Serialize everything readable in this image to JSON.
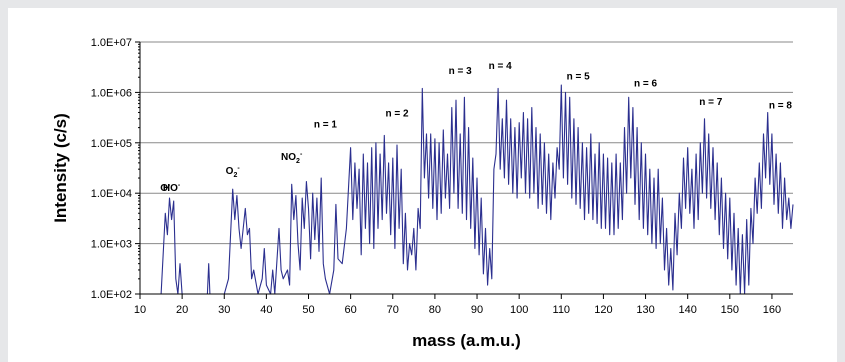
{
  "chart_data": {
    "type": "line",
    "xlabel": "mass (a.m.u.)",
    "ylabel": "Intensity (c/s)",
    "xlim": [
      10,
      165
    ],
    "ylim": [
      100,
      10000000
    ],
    "yscale": "log",
    "x_ticks": [
      "10",
      "20",
      "30",
      "40",
      "50",
      "60",
      "70",
      "80",
      "90",
      "100",
      "110",
      "120",
      "130",
      "140",
      "150",
      "160"
    ],
    "y_ticks": [
      "1.0E+02",
      "1.0E+03",
      "1.0E+04",
      "1.0E+05",
      "1.0E+06",
      "1.0E+07"
    ],
    "grid": "horizontal",
    "line_color": "#2b2f8f",
    "annotations": [
      {
        "base": "O",
        "sup": "-",
        "sub": "",
        "sup2": "",
        "x": 16,
        "y": 11000
      },
      {
        "base": "HO",
        "sup": "-",
        "sub": "",
        "sup2": "",
        "x": 17.5,
        "y": 11000
      },
      {
        "base": "O",
        "sup": "",
        "sub": "2",
        "sup2": "-",
        "x": 32,
        "y": 24000
      },
      {
        "base": "NO",
        "sup": "",
        "sub": "2",
        "sup2": "-",
        "x": 46,
        "y": 46000
      },
      {
        "base": "n = 1",
        "sup": "",
        "sub": "",
        "sup2": "",
        "x": 54,
        "y": 200000
      },
      {
        "base": "n = 2",
        "sup": "",
        "sub": "",
        "sup2": "",
        "x": 71,
        "y": 330000
      },
      {
        "base": "n = 3",
        "sup": "",
        "sub": "",
        "sup2": "",
        "x": 86,
        "y": 2300000
      },
      {
        "base": "n = 4",
        "sup": "",
        "sub": "",
        "sup2": "",
        "x": 95.5,
        "y": 2900000
      },
      {
        "base": "n = 5",
        "sup": "",
        "sub": "",
        "sup2": "",
        "x": 114,
        "y": 1800000
      },
      {
        "base": "n = 6",
        "sup": "",
        "sub": "",
        "sup2": "",
        "x": 130,
        "y": 1300000
      },
      {
        "base": "n = 7",
        "sup": "",
        "sub": "",
        "sup2": "",
        "x": 145.5,
        "y": 560000
      },
      {
        "base": "n = 8",
        "sup": "",
        "sub": "",
        "sup2": "",
        "x": 162,
        "y": 480000
      }
    ],
    "series": [
      {
        "values": [
          [
            14,
            100
          ],
          [
            15,
            100
          ],
          [
            16,
            4000
          ],
          [
            16.5,
            1500
          ],
          [
            17,
            8000
          ],
          [
            17.5,
            3000
          ],
          [
            18,
            7000
          ],
          [
            18.5,
            200
          ],
          [
            19,
            100
          ],
          [
            19.5,
            400
          ],
          [
            20,
            100
          ],
          [
            24,
            100
          ],
          [
            26,
            100
          ],
          [
            26.3,
            400
          ],
          [
            26.6,
            100
          ],
          [
            30,
            100
          ],
          [
            31,
            200
          ],
          [
            32,
            12000
          ],
          [
            32.5,
            3000
          ],
          [
            33,
            9000
          ],
          [
            33.5,
            2000
          ],
          [
            34,
            800
          ],
          [
            35,
            5000
          ],
          [
            35.5,
            1500
          ],
          [
            36,
            2000
          ],
          [
            36.5,
            200
          ],
          [
            37,
            300
          ],
          [
            38,
            100
          ],
          [
            39,
            200
          ],
          [
            39.5,
            800
          ],
          [
            40,
            150
          ],
          [
            41,
            100
          ],
          [
            41.5,
            300
          ],
          [
            42,
            100
          ],
          [
            43,
            2000
          ],
          [
            43.5,
            300
          ],
          [
            44,
            200
          ],
          [
            45,
            300
          ],
          [
            45.5,
            150
          ],
          [
            46,
            15000
          ],
          [
            46.5,
            3000
          ],
          [
            47,
            9000
          ],
          [
            47.5,
            1000
          ],
          [
            48,
            300
          ],
          [
            48.5,
            8000
          ],
          [
            49,
            2000
          ],
          [
            49.5,
            17000
          ],
          [
            50,
            5000
          ],
          [
            50.5,
            500
          ],
          [
            51,
            10000
          ],
          [
            51.5,
            1200
          ],
          [
            52,
            8000
          ],
          [
            52.5,
            700
          ],
          [
            53,
            20000
          ],
          [
            53.5,
            400
          ],
          [
            54,
            200
          ],
          [
            55,
            100
          ],
          [
            56,
            300
          ],
          [
            56.5,
            6000
          ],
          [
            57,
            500
          ],
          [
            58,
            400
          ],
          [
            59,
            2000
          ],
          [
            60,
            80000
          ],
          [
            60.5,
            3000
          ],
          [
            61,
            40000
          ],
          [
            61.5,
            5000
          ],
          [
            62,
            30000
          ],
          [
            62.5,
            600
          ],
          [
            63,
            60000
          ],
          [
            63.5,
            2000
          ],
          [
            64,
            40000
          ],
          [
            64.5,
            1000
          ],
          [
            65,
            80000
          ],
          [
            65.5,
            800
          ],
          [
            66,
            100000
          ],
          [
            66.5,
            2000
          ],
          [
            67,
            60000
          ],
          [
            67.5,
            3000
          ],
          [
            68,
            140000
          ],
          [
            68.5,
            4000
          ],
          [
            69,
            40000
          ],
          [
            69.5,
            1500
          ],
          [
            70,
            50000
          ],
          [
            70.5,
            800
          ],
          [
            71,
            90000
          ],
          [
            71.5,
            2000
          ],
          [
            72,
            30000
          ],
          [
            72.5,
            400
          ],
          [
            73,
            4000
          ],
          [
            73.5,
            300
          ],
          [
            74,
            1000
          ],
          [
            74.5,
            600
          ],
          [
            75,
            2000
          ],
          [
            75.5,
            300
          ],
          [
            76,
            5000
          ],
          [
            76.5,
            2000
          ],
          [
            77,
            1200000
          ],
          [
            77.5,
            20000
          ],
          [
            78,
            150000
          ],
          [
            78.5,
            8000
          ],
          [
            79,
            150000
          ],
          [
            79.5,
            5000
          ],
          [
            80,
            120000
          ],
          [
            80.5,
            3000
          ],
          [
            81,
            100000
          ],
          [
            81.5,
            4000
          ],
          [
            82,
            180000
          ],
          [
            82.5,
            8000
          ],
          [
            83,
            60000
          ],
          [
            83.5,
            5000
          ],
          [
            84,
            500000
          ],
          [
            84.5,
            10000
          ],
          [
            85,
            700000
          ],
          [
            85.5,
            5000
          ],
          [
            86,
            150000
          ],
          [
            86.5,
            4000
          ],
          [
            87,
            800000
          ],
          [
            87.5,
            3000
          ],
          [
            88,
            200000
          ],
          [
            88.5,
            2000
          ],
          [
            89,
            50000
          ],
          [
            89.5,
            800
          ],
          [
            90,
            20000
          ],
          [
            90.5,
            600
          ],
          [
            91,
            8000
          ],
          [
            91.5,
            250
          ],
          [
            92,
            2000
          ],
          [
            92.5,
            150
          ],
          [
            93,
            800
          ],
          [
            93.5,
            200
          ],
          [
            94,
            30000
          ],
          [
            94.5,
            60000
          ],
          [
            95,
            1200000
          ],
          [
            95.5,
            30000
          ],
          [
            96,
            300000
          ],
          [
            96.5,
            20000
          ],
          [
            97,
            700000
          ],
          [
            97.5,
            15000
          ],
          [
            98,
            300000
          ],
          [
            98.5,
            10000
          ],
          [
            99,
            200000
          ],
          [
            99.5,
            8000
          ],
          [
            100,
            250000
          ],
          [
            100.5,
            20000
          ],
          [
            101,
            400000
          ],
          [
            101.5,
            10000
          ],
          [
            102,
            300000
          ],
          [
            102.5,
            8000
          ],
          [
            103,
            500000
          ],
          [
            103.5,
            10000
          ],
          [
            104,
            200000
          ],
          [
            104.5,
            5000
          ],
          [
            105,
            150000
          ],
          [
            105.5,
            6000
          ],
          [
            106,
            100000
          ],
          [
            106.5,
            4000
          ],
          [
            107,
            60000
          ],
          [
            107.5,
            3000
          ],
          [
            108,
            40000
          ],
          [
            108.5,
            8000
          ],
          [
            109,
            80000
          ],
          [
            109.5,
            30000
          ],
          [
            110,
            1400000
          ],
          [
            110.5,
            20000
          ],
          [
            111,
            1000000
          ],
          [
            111.5,
            15000
          ],
          [
            112,
            800000
          ],
          [
            112.5,
            8000
          ],
          [
            113,
            300000
          ],
          [
            113.5,
            6000
          ],
          [
            114,
            200000
          ],
          [
            114.5,
            5000
          ],
          [
            115,
            100000
          ],
          [
            115.5,
            3000
          ],
          [
            116,
            80000
          ],
          [
            116.5,
            4000
          ],
          [
            117,
            150000
          ],
          [
            117.5,
            3000
          ],
          [
            118,
            60000
          ],
          [
            118.5,
            2500
          ],
          [
            119,
            100000
          ],
          [
            119.5,
            2000
          ],
          [
            120,
            60000
          ],
          [
            120.5,
            2000
          ],
          [
            121,
            50000
          ],
          [
            121.5,
            1500
          ],
          [
            122,
            40000
          ],
          [
            122.5,
            1500
          ],
          [
            123,
            60000
          ],
          [
            123.5,
            2000
          ],
          [
            124,
            40000
          ],
          [
            124.5,
            3000
          ],
          [
            125,
            200000
          ],
          [
            125.5,
            10000
          ],
          [
            126,
            800000
          ],
          [
            126.5,
            20000
          ],
          [
            127,
            500000
          ],
          [
            127.5,
            6000
          ],
          [
            128,
            200000
          ],
          [
            128.5,
            3000
          ],
          [
            129,
            100000
          ],
          [
            129.5,
            2000
          ],
          [
            130,
            60000
          ],
          [
            130.5,
            1500
          ],
          [
            131,
            30000
          ],
          [
            131.5,
            1000
          ],
          [
            132,
            20000
          ],
          [
            132.5,
            800
          ],
          [
            133,
            30000
          ],
          [
            133.5,
            1000
          ],
          [
            134,
            8000
          ],
          [
            134.5,
            300
          ],
          [
            135,
            2000
          ],
          [
            135.5,
            150
          ],
          [
            136,
            800
          ],
          [
            136.5,
            120
          ],
          [
            137,
            4000
          ],
          [
            137.5,
            600
          ],
          [
            138,
            10000
          ],
          [
            138.5,
            2000
          ],
          [
            139,
            50000
          ],
          [
            139.5,
            5000
          ],
          [
            140,
            80000
          ],
          [
            140.5,
            4000
          ],
          [
            141,
            30000
          ],
          [
            141.5,
            2000
          ],
          [
            142,
            60000
          ],
          [
            142.5,
            3000
          ],
          [
            143,
            100000
          ],
          [
            143.5,
            10000
          ],
          [
            144,
            300000
          ],
          [
            144.5,
            8000
          ],
          [
            145,
            150000
          ],
          [
            145.5,
            5000
          ],
          [
            146,
            80000
          ],
          [
            146.5,
            3000
          ],
          [
            147,
            40000
          ],
          [
            147.5,
            1500
          ],
          [
            148,
            20000
          ],
          [
            148.5,
            800
          ],
          [
            149,
            10000
          ],
          [
            149.5,
            500
          ],
          [
            150,
            8000
          ],
          [
            150.5,
            300
          ],
          [
            151,
            4000
          ],
          [
            151.5,
            150
          ],
          [
            152,
            2000
          ],
          [
            152.5,
            100
          ],
          [
            153,
            1500
          ],
          [
            153.5,
            100
          ],
          [
            154,
            3000
          ],
          [
            154.5,
            150
          ],
          [
            155,
            5000
          ],
          [
            155.5,
            1000
          ],
          [
            156,
            20000
          ],
          [
            156.5,
            4000
          ],
          [
            157,
            40000
          ],
          [
            157.5,
            5000
          ],
          [
            158,
            150000
          ],
          [
            158.5,
            20000
          ],
          [
            159,
            400000
          ],
          [
            159.5,
            15000
          ],
          [
            160,
            150000
          ],
          [
            160.5,
            6000
          ],
          [
            161,
            60000
          ],
          [
            161.5,
            4000
          ],
          [
            162,
            40000
          ],
          [
            162.5,
            2000
          ],
          [
            163,
            20000
          ],
          [
            163.5,
            3000
          ],
          [
            164,
            8000
          ],
          [
            164.5,
            2000
          ],
          [
            165,
            6000
          ]
        ]
      }
    ]
  }
}
